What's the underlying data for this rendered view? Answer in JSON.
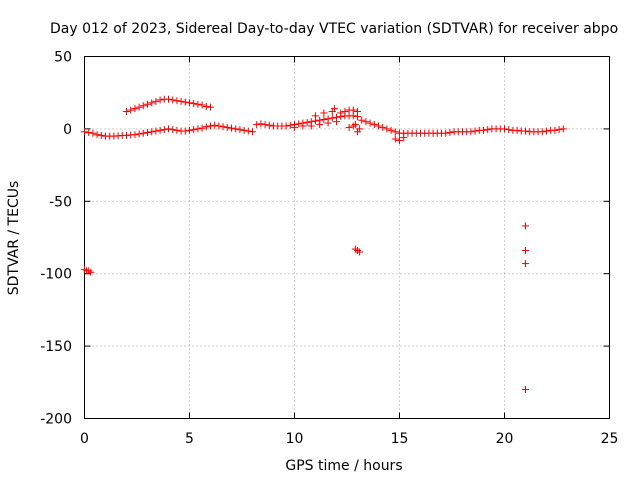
{
  "chart_data": {
    "type": "scatter",
    "title": "Day 012 of 2023, Sidereal Day-to-day VTEC variation (SDTVAR) for receiver abpo",
    "xlabel": "GPS time / hours",
    "ylabel": "SDTVAR / TECUs",
    "xlim": [
      0,
      25
    ],
    "ylim": [
      -200,
      50
    ],
    "xticks": [
      0,
      5,
      10,
      15,
      20,
      25
    ],
    "yticks": [
      50,
      0,
      -50,
      -100,
      -150,
      -200
    ],
    "grid": true,
    "marker": "+",
    "color": "#ff0000",
    "series": [
      {
        "name": "main_band",
        "points": [
          [
            0.0,
            -2
          ],
          [
            0.2,
            -2.5
          ],
          [
            0.4,
            -3
          ],
          [
            0.6,
            -4
          ],
          [
            0.8,
            -4.5
          ],
          [
            1.0,
            -5
          ],
          [
            1.2,
            -5
          ],
          [
            1.4,
            -5
          ],
          [
            1.6,
            -4.8
          ],
          [
            1.8,
            -4.5
          ],
          [
            2.0,
            -4.5
          ],
          [
            2.2,
            -4.2
          ],
          [
            2.4,
            -4
          ],
          [
            2.6,
            -3.5
          ],
          [
            2.8,
            -3
          ],
          [
            3.0,
            -2.5
          ],
          [
            3.2,
            -2
          ],
          [
            3.4,
            -1.5
          ],
          [
            3.6,
            -1
          ],
          [
            3.8,
            -0.5
          ],
          [
            4.0,
            0
          ],
          [
            4.2,
            -0.5
          ],
          [
            4.4,
            -1
          ],
          [
            4.6,
            -1.5
          ],
          [
            4.8,
            -1.5
          ],
          [
            5.0,
            -1
          ],
          [
            5.2,
            -0.5
          ],
          [
            5.4,
            0
          ],
          [
            5.6,
            0.5
          ],
          [
            5.8,
            1.5
          ],
          [
            6.0,
            2
          ],
          [
            6.2,
            2.5
          ],
          [
            6.4,
            2
          ],
          [
            6.6,
            1.5
          ],
          [
            6.8,
            1
          ],
          [
            7.0,
            0.5
          ],
          [
            7.2,
            0
          ],
          [
            7.4,
            -0.5
          ],
          [
            7.6,
            -1
          ],
          [
            7.8,
            -1.5
          ],
          [
            8.0,
            -2
          ],
          [
            8.2,
            3
          ],
          [
            8.4,
            3.5
          ],
          [
            8.6,
            3
          ],
          [
            8.8,
            2.5
          ],
          [
            9.0,
            2
          ],
          [
            9.2,
            2
          ],
          [
            9.4,
            2
          ],
          [
            9.6,
            2
          ],
          [
            9.8,
            2.5
          ],
          [
            10.0,
            3
          ],
          [
            10.2,
            3.5
          ],
          [
            10.4,
            4
          ],
          [
            10.6,
            4.5
          ],
          [
            10.8,
            5
          ],
          [
            11.0,
            5.5
          ],
          [
            11.2,
            6
          ],
          [
            11.4,
            6.5
          ],
          [
            11.6,
            7
          ],
          [
            11.8,
            7.5
          ],
          [
            12.0,
            8
          ],
          [
            12.2,
            8.5
          ],
          [
            12.4,
            9
          ],
          [
            12.6,
            9
          ],
          [
            12.8,
            9
          ],
          [
            13.0,
            8.5
          ],
          [
            13.2,
            6
          ],
          [
            13.4,
            5
          ],
          [
            13.6,
            4
          ],
          [
            13.8,
            3
          ],
          [
            14.0,
            2
          ],
          [
            14.2,
            1
          ],
          [
            14.4,
            0
          ],
          [
            14.6,
            -1
          ],
          [
            14.8,
            -2
          ],
          [
            15.0,
            -3
          ],
          [
            15.2,
            -3
          ],
          [
            15.4,
            -3
          ],
          [
            15.6,
            -3
          ],
          [
            15.8,
            -3
          ],
          [
            16.0,
            -3
          ],
          [
            16.2,
            -3
          ],
          [
            16.4,
            -3
          ],
          [
            16.6,
            -3
          ],
          [
            16.8,
            -3
          ],
          [
            17.0,
            -3
          ],
          [
            17.2,
            -3
          ],
          [
            17.4,
            -2.5
          ],
          [
            17.6,
            -2
          ],
          [
            17.8,
            -2
          ],
          [
            18.0,
            -2
          ],
          [
            18.2,
            -2
          ],
          [
            18.4,
            -2
          ],
          [
            18.6,
            -1.5
          ],
          [
            18.8,
            -1
          ],
          [
            19.0,
            -1
          ],
          [
            19.2,
            -0.5
          ],
          [
            19.4,
            0
          ],
          [
            19.6,
            0
          ],
          [
            19.8,
            0
          ],
          [
            20.0,
            0
          ],
          [
            20.2,
            -0.5
          ],
          [
            20.4,
            -1
          ],
          [
            20.6,
            -1
          ],
          [
            20.8,
            -1.5
          ],
          [
            21.0,
            -1.5
          ],
          [
            21.2,
            -2
          ],
          [
            21.4,
            -2
          ],
          [
            21.6,
            -2
          ],
          [
            21.8,
            -2
          ],
          [
            22.0,
            -1.5
          ],
          [
            22.2,
            -1
          ],
          [
            22.4,
            -1
          ],
          [
            22.6,
            -0.5
          ],
          [
            22.8,
            0
          ]
        ]
      },
      {
        "name": "upper_arc",
        "points": [
          [
            2.0,
            12
          ],
          [
            2.2,
            13
          ],
          [
            2.4,
            14
          ],
          [
            2.6,
            15
          ],
          [
            2.8,
            16
          ],
          [
            3.0,
            17
          ],
          [
            3.2,
            18
          ],
          [
            3.4,
            19
          ],
          [
            3.6,
            20
          ],
          [
            3.8,
            20.5
          ],
          [
            4.0,
            20.5
          ],
          [
            4.2,
            20
          ],
          [
            4.4,
            19.5
          ],
          [
            4.6,
            19
          ],
          [
            4.8,
            18.5
          ],
          [
            5.0,
            18
          ],
          [
            5.2,
            17.5
          ],
          [
            5.4,
            17
          ],
          [
            5.6,
            16.5
          ],
          [
            5.8,
            15.5
          ],
          [
            6.0,
            15
          ]
        ]
      },
      {
        "name": "spread_band",
        "points": [
          [
            10.0,
            1
          ],
          [
            10.4,
            2
          ],
          [
            10.8,
            2
          ],
          [
            11.2,
            3
          ],
          [
            11.6,
            4
          ],
          [
            12.0,
            5
          ],
          [
            12.2,
            11
          ],
          [
            12.4,
            12
          ],
          [
            12.6,
            13
          ],
          [
            12.8,
            13
          ],
          [
            13.0,
            12
          ],
          [
            12.9,
            3
          ],
          [
            12.8,
            2
          ],
          [
            12.6,
            1
          ],
          [
            11.0,
            9
          ],
          [
            11.4,
            11
          ],
          [
            11.8,
            12
          ],
          [
            11.9,
            14
          ],
          [
            13.1,
            0
          ],
          [
            13.0,
            -2
          ],
          [
            15.0,
            -8
          ],
          [
            14.8,
            -7
          ],
          [
            15.2,
            -6
          ]
        ]
      },
      {
        "name": "outliers",
        "points": [
          [
            0.0,
            -97
          ],
          [
            0.1,
            -98
          ],
          [
            0.2,
            -98
          ],
          [
            0.3,
            -99
          ],
          [
            12.9,
            -83
          ],
          [
            13.0,
            -84
          ],
          [
            13.1,
            -85
          ],
          [
            21.0,
            -67
          ],
          [
            21.0,
            -84
          ],
          [
            21.0,
            -93
          ],
          [
            21.0,
            -180
          ]
        ]
      }
    ]
  }
}
